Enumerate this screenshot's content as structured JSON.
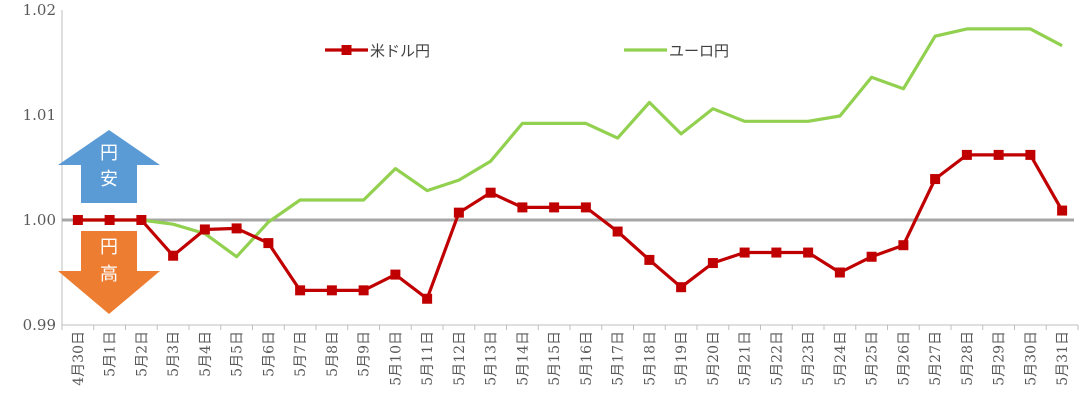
{
  "chart_data": {
    "type": "line",
    "categories": [
      "4月30日",
      "5月1日",
      "5月2日",
      "5月3日",
      "5月4日",
      "5月5日",
      "5月6日",
      "5月7日",
      "5月8日",
      "5月9日",
      "5月10日",
      "5月11日",
      "5月12日",
      "5月13日",
      "5月14日",
      "5月15日",
      "5月16日",
      "5月17日",
      "5月18日",
      "5月19日",
      "5月20日",
      "5月21日",
      "5月22日",
      "5月23日",
      "5月24日",
      "5月25日",
      "5月26日",
      "5月27日",
      "5月28日",
      "5月29日",
      "5月30日",
      "5月31日"
    ],
    "series": [
      {
        "name": "米ドル円",
        "color": "#c00000",
        "marker": "square",
        "values": [
          1.0,
          1.0,
          1.0,
          0.9966,
          0.9991,
          0.9992,
          0.9978,
          0.9933,
          0.9933,
          0.9933,
          0.9948,
          0.9925,
          1.0007,
          1.0026,
          1.0012,
          1.0012,
          1.0012,
          0.9989,
          0.9962,
          0.9936,
          0.9959,
          0.9969,
          0.9969,
          0.9969,
          0.995,
          0.9965,
          0.9976,
          1.0039,
          1.0062,
          1.0062,
          1.0062,
          1.0009
        ]
      },
      {
        "name": "ユーロ円",
        "color": "#92d050",
        "marker": "none",
        "values": [
          1.0,
          1.0,
          1.0,
          0.9996,
          0.9987,
          0.9965,
          0.9998,
          1.0019,
          1.0019,
          1.0019,
          1.0049,
          1.0028,
          1.0038,
          1.0056,
          1.0092,
          1.0092,
          1.0092,
          1.0078,
          1.0112,
          1.0082,
          1.0106,
          1.0094,
          1.0094,
          1.0094,
          1.0099,
          1.0136,
          1.0125,
          1.0175,
          1.0182,
          1.0182,
          1.0182,
          1.0166
        ]
      }
    ],
    "ylim": [
      0.99,
      1.02
    ],
    "yticks": [
      "0.99",
      "1.00",
      "1.01",
      "1.02"
    ],
    "baseline": {
      "value": 1.0,
      "color": "#a6a6a6"
    },
    "grid": false,
    "legend": "top",
    "annotations": {
      "up": {
        "chars": [
          "円",
          "安"
        ],
        "color": "#5b9bd5"
      },
      "down": {
        "chars": [
          "円",
          "高"
        ],
        "color": "#ed7d31"
      }
    }
  }
}
